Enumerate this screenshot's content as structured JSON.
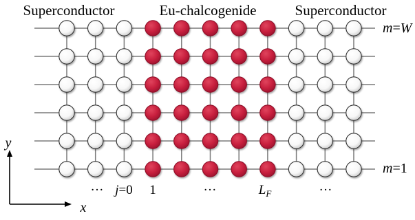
{
  "regions": {
    "left": "Superconductor",
    "middle": "Eu-chalcogenide",
    "right": "Superconductor"
  },
  "row_labels": {
    "top": {
      "var": "m",
      "eq": "=",
      "val": "W"
    },
    "bottom": {
      "var": "m",
      "eq": "=",
      "val": "1"
    }
  },
  "column_labels": {
    "dots_left": "···",
    "j0": {
      "var": "j",
      "eq": "=",
      "val": "0"
    },
    "one": "1",
    "dots_mid": "···",
    "lf": {
      "base": "L",
      "sub": "F"
    },
    "dots_right": "···"
  },
  "axes": {
    "x": "x",
    "y": "y"
  },
  "lattice": {
    "rows": 6,
    "columns": 11,
    "ferromagnet_columns": [
      3,
      4,
      5,
      6,
      7
    ]
  },
  "colors": {
    "ferromagnet_site": "#c8203e",
    "superconductor_site": "#ffffff",
    "bond": "#7a7a7a",
    "site_outline": "#333333"
  }
}
